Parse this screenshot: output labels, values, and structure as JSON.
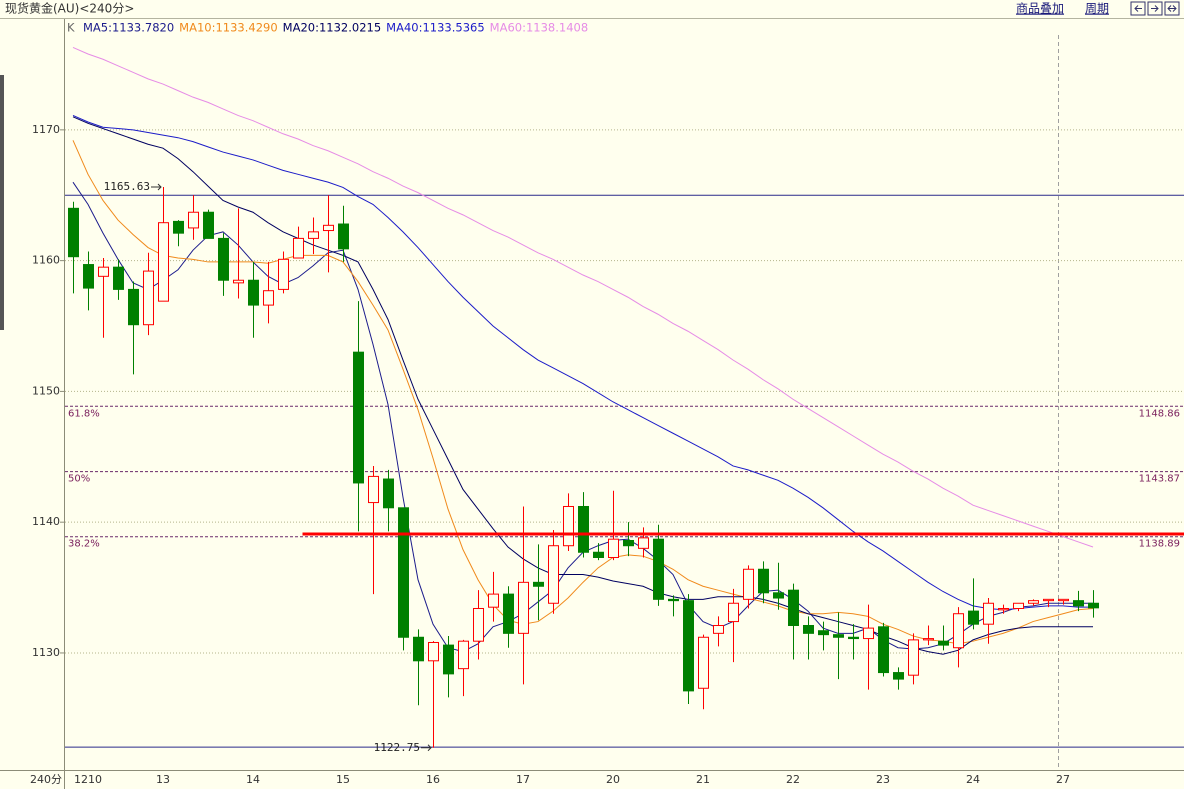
{
  "toolbar": {
    "overlay": "商品叠加",
    "period": "周期"
  },
  "chart_data": {
    "type": "candlestick",
    "title": "现货黄金(AU)<240分>",
    "indicator_label": "K",
    "period_label": "240分",
    "categories": [
      null,
      "1210",
      null,
      null,
      null,
      null,
      "13",
      null,
      null,
      null,
      null,
      null,
      "14",
      null,
      null,
      null,
      null,
      null,
      "15",
      null,
      null,
      null,
      null,
      null,
      "16",
      null,
      null,
      null,
      null,
      null,
      "17",
      null,
      null,
      null,
      null,
      null,
      "20",
      null,
      null,
      null,
      null,
      null,
      "21",
      null,
      null,
      null,
      null,
      null,
      "22",
      null,
      null,
      null,
      null,
      null,
      "23",
      null,
      null,
      null,
      null,
      null,
      "24",
      null,
      null,
      null,
      null,
      null,
      "27",
      null,
      null
    ],
    "open": [
      1164.0,
      1159.7,
      1158.8,
      1159.5,
      1157.8,
      1155.1,
      1156.9,
      1163.0,
      1162.5,
      1163.7,
      1161.7,
      1158.3,
      1158.5,
      1156.6,
      1157.8,
      1160.2,
      1161.7,
      1162.3,
      1162.8,
      1153.0,
      1141.5,
      1143.3,
      1141.1,
      1131.2,
      1129.4,
      1130.6,
      1128.8,
      1130.9,
      1133.5,
      1134.5,
      1131.5,
      1135.4,
      1133.8,
      1138.2,
      1141.2,
      1137.7,
      1137.3,
      1138.6,
      1138.0,
      1138.7,
      1134.1,
      1134.0,
      1127.3,
      1131.5,
      1132.4,
      1134.1,
      1136.4,
      1134.6,
      1134.8,
      1132.1,
      1131.7,
      1131.4,
      1131.2,
      1131.1,
      1132.0,
      1128.5,
      1128.3,
      1131.0,
      1130.9,
      1130.4,
      1133.2,
      1132.2,
      1133.3,
      1133.4,
      1133.8,
      1134.0,
      1134.0,
      1134.0,
      1133.8
    ],
    "high": [
      1164.5,
      1160.7,
      1160.2,
      1160.1,
      1158.4,
      1160.6,
      1165.63,
      1163.1,
      1165.0,
      1163.9,
      1162.1,
      1164.0,
      1159.9,
      1159.9,
      1160.7,
      1162.6,
      1163.3,
      1165.0,
      1164.2,
      1156.9,
      1144.3,
      1144.0,
      1141.1,
      1131.8,
      1130.9,
      1131.3,
      1131.0,
      1134.8,
      1136.2,
      1135.1,
      1141.2,
      1138.3,
      1139.4,
      1142.2,
      1142.3,
      1138.4,
      1142.4,
      1140.0,
      1139.6,
      1139.8,
      1134.4,
      1134.5,
      1131.4,
      1132.8,
      1134.9,
      1136.7,
      1137.0,
      1136.9,
      1135.3,
      1132.8,
      1132.4,
      1133.1,
      1132.2,
      1133.7,
      1132.3,
      1128.9,
      1131.5,
      1132.1,
      1132.1,
      1133.5,
      1135.7,
      1134.2,
      1133.7,
      1133.8,
      1134.1,
      1134.1,
      1134.1,
      1134.75,
      1134.8
    ],
    "low": [
      1157.5,
      1156.2,
      1154.1,
      1157.0,
      1151.3,
      1154.3,
      1156.9,
      1161.1,
      1161.6,
      1161.7,
      1157.3,
      1157.1,
      1154.1,
      1155.2,
      1157.5,
      1160.2,
      1160.5,
      1159.1,
      1159.9,
      1139.3,
      1134.5,
      1139.3,
      1130.2,
      1126.0,
      1122.75,
      1126.6,
      1126.7,
      1129.5,
      1132.4,
      1130.4,
      1127.6,
      1132.5,
      1133.0,
      1137.8,
      1137.3,
      1137.1,
      1137.1,
      1137.4,
      1137.3,
      1133.6,
      1132.8,
      1126.1,
      1125.7,
      1130.5,
      1129.3,
      1133.4,
      1133.8,
      1133.3,
      1129.5,
      1129.5,
      1130.2,
      1128.0,
      1129.5,
      1127.2,
      1128.2,
      1127.2,
      1127.6,
      1130.6,
      1130.2,
      1128.9,
      1131.8,
      1130.7,
      1133.0,
      1133.2,
      1133.6,
      1133.5,
      1133.7,
      1133.2,
      1132.7
    ],
    "close": [
      1160.3,
      1157.9,
      1159.5,
      1157.8,
      1155.1,
      1159.2,
      1162.9,
      1162.1,
      1163.7,
      1161.7,
      1158.5,
      1158.5,
      1156.6,
      1157.7,
      1160.1,
      1161.7,
      1162.2,
      1162.7,
      1160.9,
      1143.0,
      1143.5,
      1141.1,
      1131.2,
      1129.4,
      1130.8,
      1128.4,
      1130.9,
      1133.4,
      1134.5,
      1131.5,
      1135.4,
      1135.1,
      1138.2,
      1141.2,
      1137.7,
      1137.3,
      1138.7,
      1138.2,
      1138.8,
      1134.1,
      1134.0,
      1127.1,
      1131.2,
      1132.1,
      1133.8,
      1136.4,
      1134.6,
      1134.2,
      1132.1,
      1131.5,
      1131.4,
      1131.2,
      1131.1,
      1131.9,
      1128.5,
      1128.0,
      1131.0,
      1131.1,
      1130.6,
      1133.0,
      1132.2,
      1133.8,
      1133.4,
      1133.8,
      1134.0,
      1134.1,
      1134.1,
      1133.6,
      1133.45
    ],
    "up_color": "#ff0000",
    "down_color": "#008000",
    "series": [
      {
        "name": "MA5:1133.7820",
        "color": "#1c1c8c",
        "values": [
          1166.0,
          1164.3,
          1162.1,
          1160.1,
          1158.3,
          1157.8,
          1158.5,
          1159.3,
          1160.8,
          1161.9,
          1162.2,
          1161.2,
          1159.9,
          1158.8,
          1158.2,
          1158.7,
          1159.6,
          1160.6,
          1160.8,
          1157.8,
          1153.6,
          1149.0,
          1141.9,
          1135.6,
          1132.2,
          1130.4,
          1130.1,
          1130.7,
          1132.0,
          1132.4,
          1133.0,
          1133.9,
          1134.8,
          1136.5,
          1137.7,
          1138.2,
          1138.6,
          1138.7,
          1138.0,
          1137.1,
          1136.0,
          1133.7,
          1132.4,
          1131.9,
          1132.4,
          1133.6,
          1134.7,
          1134.8,
          1134.1,
          1133.2,
          1131.9,
          1131.5,
          1131.5,
          1131.9,
          1131.0,
          1130.4,
          1130.3,
          1130.4,
          1130.7,
          1131.4,
          1132.2,
          1132.8,
          1133.1,
          1133.5,
          1133.6,
          1133.8,
          1133.8,
          1133.8,
          1133.8
        ]
      },
      {
        "name": "MA10:1133.4290",
        "color": "#f08a1c",
        "values": [
          1169.2,
          1166.6,
          1164.6,
          1163.1,
          1162.0,
          1161.0,
          1160.4,
          1160.2,
          1160.1,
          1159.9,
          1159.9,
          1159.9,
          1159.9,
          1159.8,
          1160.1,
          1160.4,
          1160.4,
          1160.4,
          1159.9,
          1158.4,
          1156.6,
          1154.7,
          1151.7,
          1148.6,
          1144.9,
          1141.0,
          1137.9,
          1135.6,
          1133.7,
          1132.5,
          1132.2,
          1132.4,
          1133.2,
          1134.2,
          1135.4,
          1136.5,
          1137.3,
          1137.5,
          1137.4,
          1137.0,
          1136.4,
          1135.6,
          1135.1,
          1134.8,
          1134.5,
          1134.2,
          1133.9,
          1133.6,
          1133.2,
          1133.0,
          1133.0,
          1133.1,
          1133.0,
          1132.8,
          1132.2,
          1131.8,
          1131.3,
          1131.0,
          1130.9,
          1130.7,
          1130.9,
          1131.2,
          1131.5,
          1131.9,
          1132.4,
          1132.7,
          1133.0,
          1133.3,
          1133.4
        ]
      },
      {
        "name": "MA20:1132.0215",
        "color": "#000060",
        "values": [
          1171.0,
          1170.5,
          1170.1,
          1169.7,
          1169.3,
          1168.9,
          1168.6,
          1167.8,
          1166.8,
          1165.7,
          1164.6,
          1164.1,
          1163.7,
          1162.9,
          1162.2,
          1161.7,
          1161.2,
          1160.8,
          1160.4,
          1159.9,
          1157.8,
          1155.5,
          1152.4,
          1149.4,
          1147.1,
          1144.8,
          1142.5,
          1141.0,
          1139.5,
          1138.1,
          1137.2,
          1136.5,
          1136.0,
          1136.0,
          1136.0,
          1135.8,
          1135.5,
          1135.3,
          1135.1,
          1134.6,
          1134.3,
          1134.1,
          1134.1,
          1134.3,
          1134.3,
          1134.3,
          1134.1,
          1133.8,
          1133.4,
          1133.0,
          1132.7,
          1132.4,
          1132.1,
          1131.8,
          1131.3,
          1130.9,
          1130.4,
          1130.1,
          1129.9,
          1130.2,
          1131.0,
          1131.4,
          1131.7,
          1131.9,
          1132.0,
          1132.0,
          1132.0,
          1132.0,
          1132.0
        ]
      },
      {
        "name": "MA40:1133.5365",
        "color": "#1c1cc8",
        "values": [
          1171.1,
          1170.6,
          1170.2,
          1170.1,
          1170.0,
          1169.8,
          1169.6,
          1169.4,
          1169.1,
          1168.7,
          1168.3,
          1168.0,
          1167.7,
          1167.3,
          1166.9,
          1166.6,
          1166.3,
          1166.0,
          1165.6,
          1164.9,
          1164.3,
          1163.3,
          1162.2,
          1161.0,
          1159.7,
          1158.4,
          1157.2,
          1156.1,
          1155.0,
          1154.1,
          1153.2,
          1152.4,
          1151.8,
          1151.2,
          1150.6,
          1149.9,
          1149.2,
          1148.6,
          1148.0,
          1147.4,
          1146.8,
          1146.2,
          1145.6,
          1145.0,
          1144.3,
          1144.0,
          1143.6,
          1143.2,
          1142.6,
          1141.9,
          1141.1,
          1140.2,
          1139.3,
          1138.5,
          1137.8,
          1137.0,
          1136.2,
          1135.4,
          1134.7,
          1134.1,
          1133.6,
          1133.4,
          1133.3,
          1133.4,
          1133.5,
          1133.6,
          1133.6,
          1133.5,
          1133.5
        ]
      },
      {
        "name": "MA60:1138.1408",
        "color": "#e68ce6",
        "values": [
          1176.3,
          1175.8,
          1175.4,
          1174.9,
          1174.4,
          1173.9,
          1173.5,
          1173.0,
          1172.5,
          1172.1,
          1171.6,
          1171.1,
          1170.7,
          1170.2,
          1169.7,
          1169.3,
          1168.8,
          1168.4,
          1167.9,
          1167.4,
          1166.8,
          1166.3,
          1165.7,
          1165.2,
          1164.6,
          1164.0,
          1163.5,
          1162.9,
          1162.3,
          1161.8,
          1161.2,
          1160.6,
          1160.1,
          1159.5,
          1158.9,
          1158.4,
          1157.8,
          1157.2,
          1156.5,
          1155.9,
          1155.2,
          1154.6,
          1153.9,
          1153.2,
          1152.4,
          1151.7,
          1150.9,
          1150.2,
          1149.4,
          1148.7,
          1148.0,
          1147.3,
          1146.6,
          1145.9,
          1145.2,
          1144.6,
          1143.9,
          1143.3,
          1142.6,
          1142.0,
          1141.3,
          1140.9,
          1140.5,
          1140.1,
          1139.7,
          1139.3,
          1138.9,
          1138.5,
          1138.1
        ]
      }
    ],
    "ylim": [
      1121.05,
      1178.4
    ],
    "yticks": [
      1130,
      1140,
      1150,
      1160,
      1170
    ],
    "grid": true,
    "hlines": [
      1165.0,
      1122.8
    ],
    "extremes": {
      "high": 1165.63,
      "high_index": 6,
      "low": 1122.75,
      "low_index": 24
    },
    "fib_levels": [
      {
        "label": "61.8%",
        "value": 1148.86
      },
      {
        "label": "50%",
        "value": 1143.87
      },
      {
        "label": "38.2%",
        "value": 1138.89
      }
    ],
    "resistance": {
      "value": 1139.1,
      "start": 15.3,
      "color": "#ff0000"
    }
  }
}
